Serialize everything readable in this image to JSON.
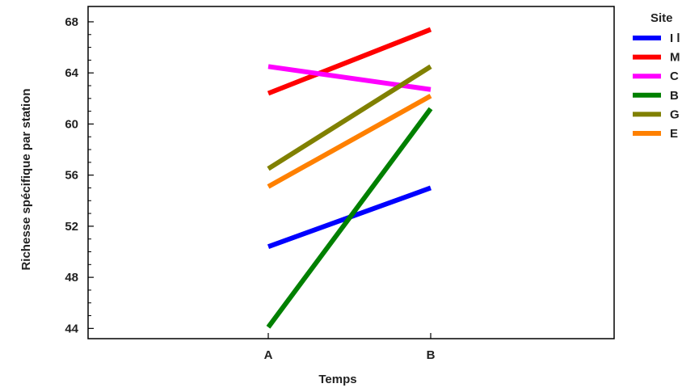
{
  "chart_data": {
    "type": "line",
    "title": "",
    "xlabel": "Temps",
    "ylabel": "Richesse spécifique par station",
    "categories": [
      "A",
      "B"
    ],
    "ylim": [
      43.2,
      69.2
    ],
    "yticks": [
      44,
      48,
      52,
      56,
      60,
      64,
      68
    ],
    "grid": false,
    "legend": {
      "title": "Site",
      "placement": "right, cropped at image edge"
    },
    "series": [
      {
        "name": "I l",
        "color": "#0000ff",
        "values": [
          50.4,
          55.0
        ]
      },
      {
        "name": "M",
        "color": "#ff0000",
        "values": [
          62.4,
          67.4
        ]
      },
      {
        "name": "C",
        "color": "#ff00ff",
        "values": [
          64.5,
          62.7
        ]
      },
      {
        "name": "B",
        "color": "#008000",
        "values": [
          44.1,
          61.2
        ]
      },
      {
        "name": "G",
        "color": "#808000",
        "values": [
          56.5,
          64.5
        ]
      },
      {
        "name": "E",
        "color": "#ff8000",
        "values": [
          55.1,
          62.2
        ]
      }
    ]
  }
}
